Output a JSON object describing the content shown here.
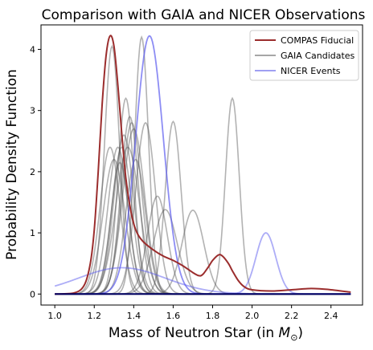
{
  "chart_data": {
    "type": "line",
    "title": "Comparison with GAIA and NICER Observations",
    "xlabel_text": "Mass of Neutron Star (in ",
    "xlabel_sym": "M",
    "xlabel_sub": "⊙",
    "xlabel_close": ")",
    "ylabel": "Probability Density Function",
    "xlim": [
      0.93,
      2.56
    ],
    "ylim": [
      -0.18,
      4.4
    ],
    "xticks": [
      "1.0",
      "1.2",
      "1.4",
      "1.6",
      "1.8",
      "2.0",
      "2.2",
      "2.4"
    ],
    "yticks": [
      "0",
      "1",
      "2",
      "3",
      "4"
    ],
    "grid": false,
    "legend_position": "top-right",
    "legend": [
      {
        "label": "COMPAS Fiducial",
        "color": "#9b2d2d",
        "opacity": 1.0
      },
      {
        "label": "GAIA Candidates",
        "color": "#888888",
        "opacity": 0.75
      },
      {
        "label": "NICER Events",
        "color": "#8e8ef0",
        "opacity": 0.85
      }
    ],
    "gaia": {
      "color": "#555555",
      "opacity": 0.45,
      "candidates": [
        {
          "mu": 1.28,
          "sigma": 0.05,
          "peak": 2.4
        },
        {
          "mu": 1.29,
          "sigma": 0.038,
          "peak": 4.05
        },
        {
          "mu": 1.3,
          "sigma": 0.055,
          "peak": 2.2
        },
        {
          "mu": 1.32,
          "sigma": 0.05,
          "peak": 2.4
        },
        {
          "mu": 1.33,
          "sigma": 0.045,
          "peak": 2.15
        },
        {
          "mu": 1.34,
          "sigma": 0.05,
          "peak": 2.4
        },
        {
          "mu": 1.35,
          "sigma": 0.05,
          "peak": 2.6
        },
        {
          "mu": 1.36,
          "sigma": 0.04,
          "peak": 3.2
        },
        {
          "mu": 1.37,
          "sigma": 0.06,
          "peak": 2.4
        },
        {
          "mu": 1.38,
          "sigma": 0.045,
          "peak": 2.9
        },
        {
          "mu": 1.39,
          "sigma": 0.05,
          "peak": 2.8
        },
        {
          "mu": 1.4,
          "sigma": 0.055,
          "peak": 2.7
        },
        {
          "mu": 1.41,
          "sigma": 0.05,
          "peak": 2.2
        },
        {
          "mu": 1.44,
          "sigma": 0.035,
          "peak": 4.2
        },
        {
          "mu": 1.46,
          "sigma": 0.05,
          "peak": 2.8
        },
        {
          "mu": 1.52,
          "sigma": 0.05,
          "peak": 1.6
        },
        {
          "mu": 1.56,
          "sigma": 0.06,
          "peak": 1.38
        },
        {
          "mu": 1.6,
          "sigma": 0.04,
          "peak": 2.82
        },
        {
          "mu": 1.7,
          "sigma": 0.055,
          "peak": 1.37
        },
        {
          "mu": 1.9,
          "sigma": 0.035,
          "peak": 3.2
        }
      ]
    },
    "nicer": {
      "color": "#5c5cf0",
      "opacity": 0.5,
      "events": [
        {
          "mu": 1.48,
          "sigma": 0.07,
          "peak": 4.22
        },
        {
          "mu": 2.07,
          "sigma": 0.05,
          "peak": 1.0
        },
        {
          "mu": 1.34,
          "sigma": 0.22,
          "peak": 0.43
        }
      ]
    },
    "compas": {
      "color": "#9b2d2d",
      "x": [
        1.0,
        1.1,
        1.15,
        1.18,
        1.2,
        1.22,
        1.24,
        1.26,
        1.28,
        1.3,
        1.32,
        1.34,
        1.36,
        1.38,
        1.4,
        1.42,
        1.45,
        1.5,
        1.55,
        1.6,
        1.65,
        1.7,
        1.73,
        1.75,
        1.78,
        1.8,
        1.83,
        1.85,
        1.88,
        1.9,
        1.93,
        1.96,
        2.0,
        2.1,
        2.2,
        2.3,
        2.4,
        2.5
      ],
      "y": [
        0.0,
        0.02,
        0.15,
        0.5,
        1.05,
        2.0,
        3.1,
        3.9,
        4.22,
        4.05,
        3.4,
        2.6,
        1.9,
        1.45,
        1.15,
        0.98,
        0.85,
        0.72,
        0.62,
        0.55,
        0.46,
        0.35,
        0.3,
        0.32,
        0.45,
        0.55,
        0.64,
        0.62,
        0.5,
        0.38,
        0.22,
        0.12,
        0.07,
        0.05,
        0.07,
        0.09,
        0.07,
        0.03
      ]
    },
    "baseline": {
      "color": "#000060",
      "x_start": 1.0,
      "x_end": 2.5,
      "value": 0
    }
  }
}
